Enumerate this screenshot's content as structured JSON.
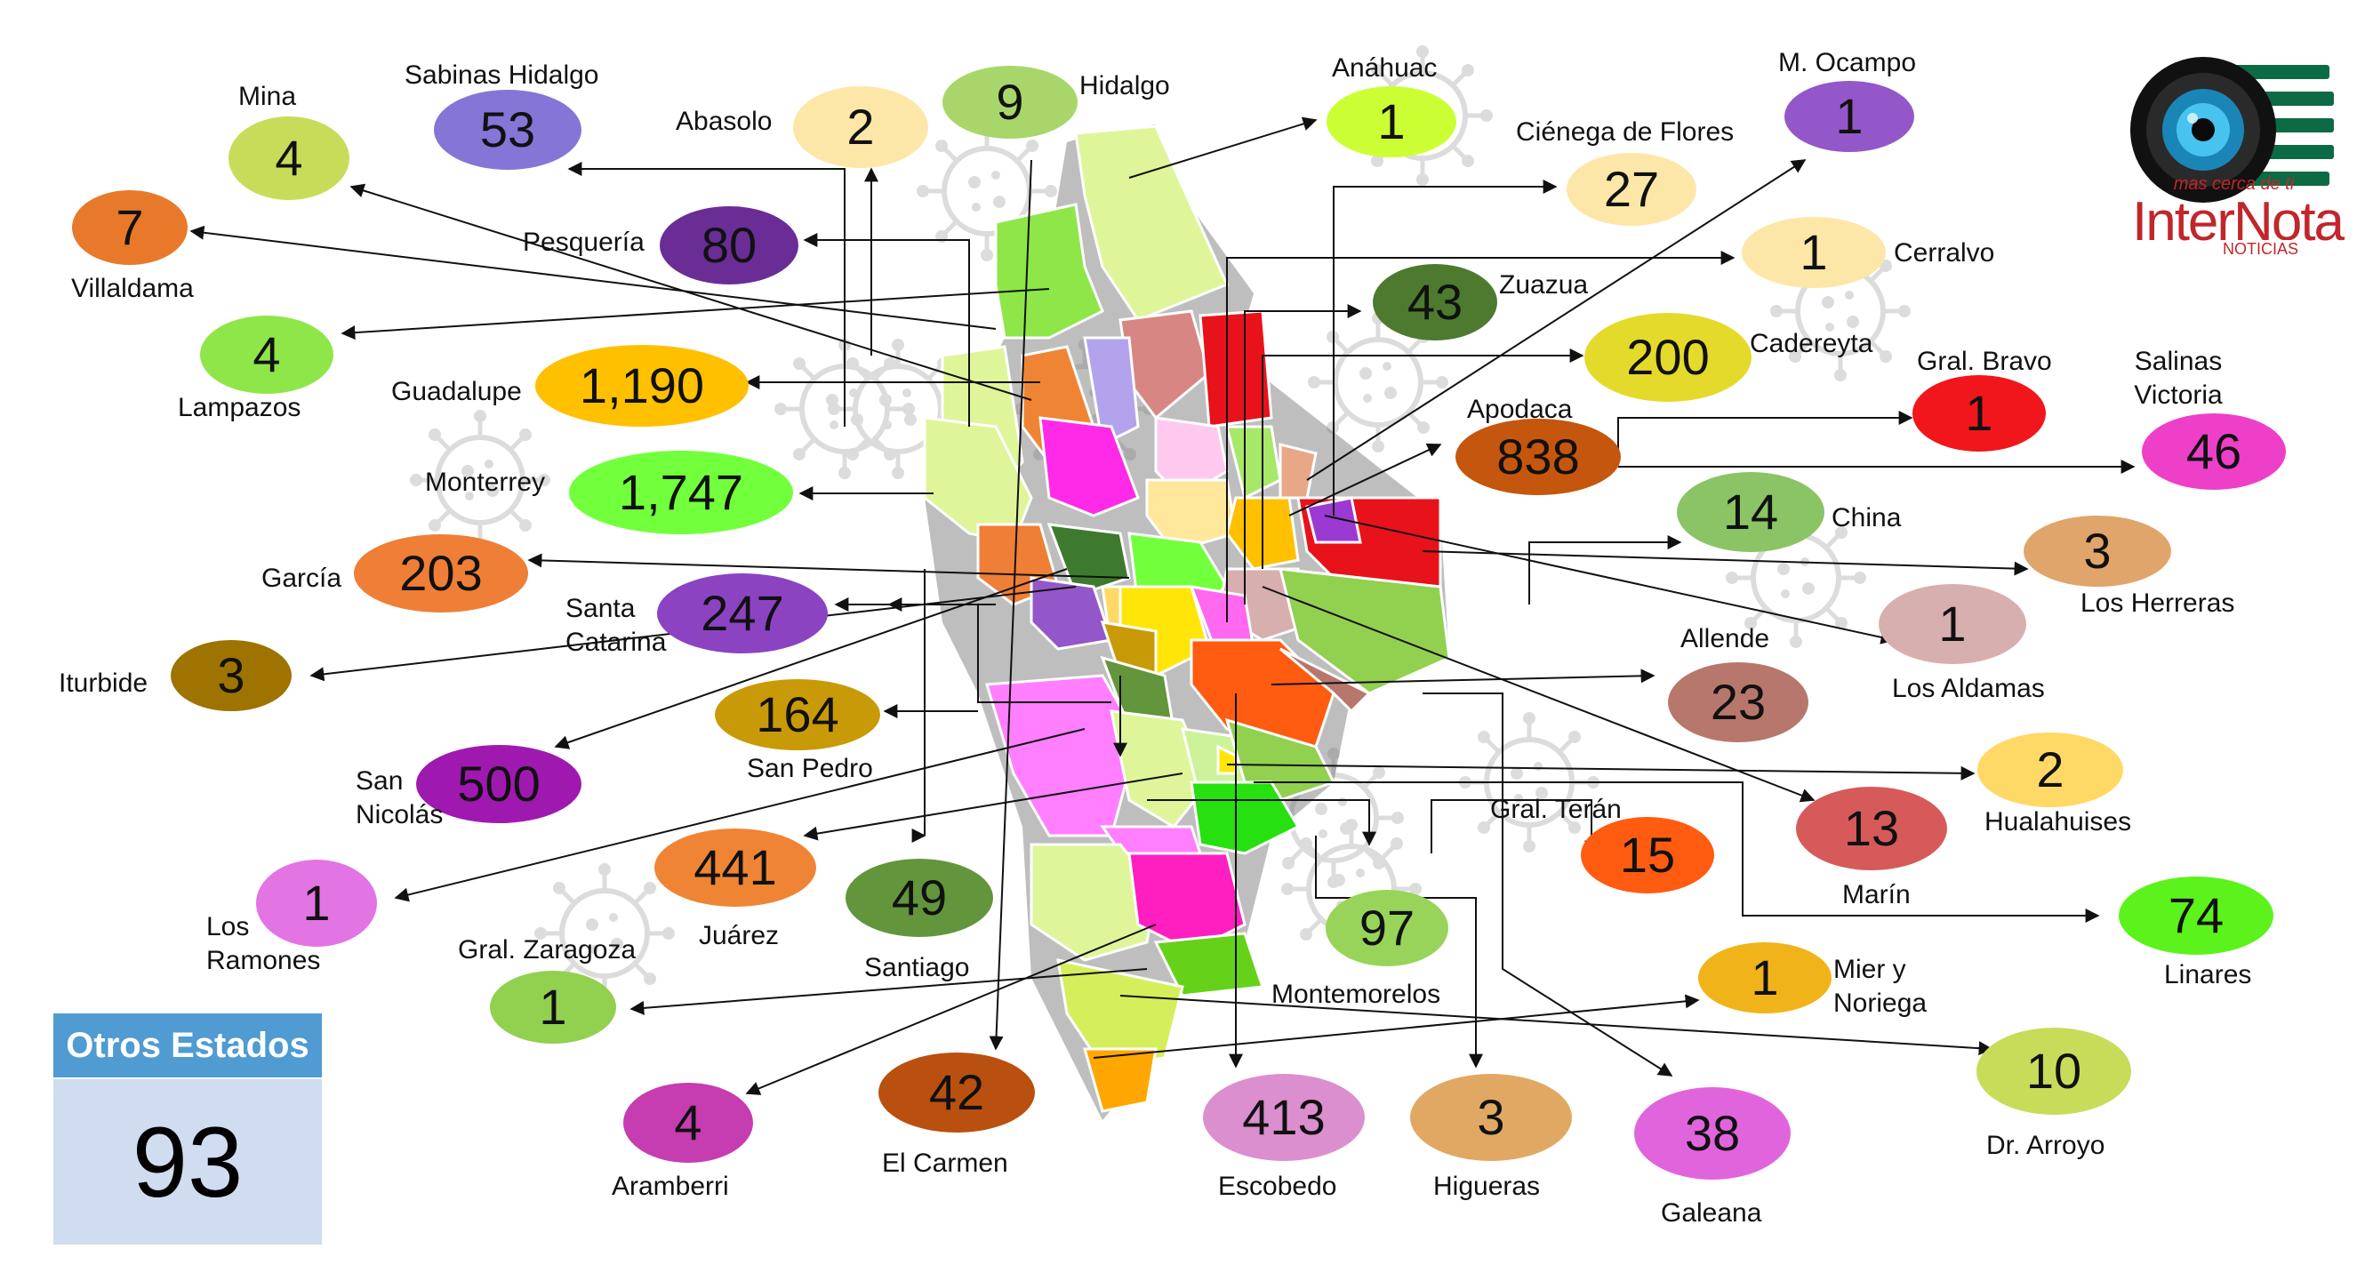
{
  "otros_estados": {
    "label": "Otros Estados",
    "value": "93"
  },
  "brand": {
    "tagline": "mas cerca de ti",
    "name": "InterNota",
    "sub": "NOTICIAS"
  },
  "municipalities": [
    {
      "name": "Mina",
      "value": "4",
      "color": "#c8dc5a"
    },
    {
      "name": "Sabinas Hidalgo",
      "value": "53",
      "color": "#8575d6"
    },
    {
      "name": "Abasolo",
      "value": "2",
      "color": "#fde7a8"
    },
    {
      "name": "Hidalgo",
      "value": "9",
      "color": "#a8d66a"
    },
    {
      "name": "Anáhuac",
      "value": "1",
      "color": "#ccff33"
    },
    {
      "name": "M. Ocampo",
      "value": "1",
      "color": "#9457c9"
    },
    {
      "name": "Ciénega de Flores",
      "value": "27",
      "color": "#fde7a8"
    },
    {
      "name": "Villaldama",
      "value": "7",
      "color": "#e8792a"
    },
    {
      "name": "Pesquería",
      "value": "80",
      "color": "#6a2d96"
    },
    {
      "name": "Cerralvo",
      "value": "1",
      "color": "#fde7a8"
    },
    {
      "name": "Lampazos",
      "value": "4",
      "color": "#8ee648"
    },
    {
      "name": "Zuazua",
      "value": "43",
      "color": "#4e7a30"
    },
    {
      "name": "Guadalupe",
      "value": "1,190",
      "color": "#ffc000"
    },
    {
      "name": "Cadereyta",
      "value": "200",
      "color": "#e4da2b"
    },
    {
      "name": "Gral. Bravo",
      "value": "1",
      "color": "#f0161b"
    },
    {
      "name": "Salinas Victoria",
      "value": "46",
      "color": "#ee3fc8"
    },
    {
      "name": "Apodaca",
      "value": "838",
      "color": "#c5560e"
    },
    {
      "name": "Monterrey",
      "value": "1,747",
      "color": "#72ff3c"
    },
    {
      "name": "China",
      "value": "14",
      "color": "#8ac464"
    },
    {
      "name": "García",
      "value": "203",
      "color": "#ef7e36"
    },
    {
      "name": "Los Herreras",
      "value": "3",
      "color": "#e0a56a"
    },
    {
      "name": "Santa Catarina",
      "value": "247",
      "color": "#8c43c2"
    },
    {
      "name": "Los Aldamas",
      "value": "1",
      "color": "#d7afaf"
    },
    {
      "name": "Iturbide",
      "value": "3",
      "color": "#9e7300"
    },
    {
      "name": "Allende",
      "value": "23",
      "color": "#b8776c"
    },
    {
      "name": "San Pedro",
      "value": "164",
      "color": "#c99a08"
    },
    {
      "name": "Hualahuises",
      "value": "2",
      "color": "#ffd966"
    },
    {
      "name": "San Nicolás",
      "value": "500",
      "color": "#9f19b1"
    },
    {
      "name": "Gral. Terán",
      "value": "15",
      "color": "#ff5b11"
    },
    {
      "name": "Marín",
      "value": "13",
      "color": "#d65a5a"
    },
    {
      "name": "Juárez",
      "value": "441",
      "color": "#ef8534"
    },
    {
      "name": "Los Ramones",
      "value": "1",
      "color": "#e374e3"
    },
    {
      "name": "Santiago",
      "value": "49",
      "color": "#63953c"
    },
    {
      "name": "Montemorelos",
      "value": "97",
      "color": "#99d45a"
    },
    {
      "name": "Linares",
      "value": "74",
      "color": "#5cf21c"
    },
    {
      "name": "Gral. Zaragoza",
      "value": "1",
      "color": "#92d050"
    },
    {
      "name": "Mier y Noriega",
      "value": "1",
      "color": "#f0b41a"
    },
    {
      "name": "Dr. Arroyo",
      "value": "10",
      "color": "#c8dc5a"
    },
    {
      "name": "Aramberri",
      "value": "4",
      "color": "#c53db0"
    },
    {
      "name": "El Carmen",
      "value": "42",
      "color": "#b9500f"
    },
    {
      "name": "Escobedo",
      "value": "413",
      "color": "#db8fce"
    },
    {
      "name": "Higueras",
      "value": "3",
      "color": "#e0a863"
    },
    {
      "name": "Galeana",
      "value": "38",
      "color": "#e065dc"
    }
  ]
}
